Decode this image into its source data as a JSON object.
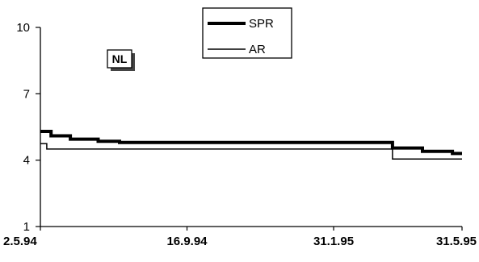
{
  "chart_data": {
    "type": "line",
    "title": "",
    "xlabel": "",
    "ylabel": "",
    "badge": "NL",
    "y_ticks": [
      "1",
      "4",
      "7",
      "10"
    ],
    "ylim": [
      1,
      10
    ],
    "x_tick_labels": [
      "2.5.94",
      "16.9.94",
      "31.1.95",
      "31.5.95"
    ],
    "x_tick_dates": [
      "1994-05-02",
      "1994-09-16",
      "1995-01-31",
      "1995-05-31"
    ],
    "xlim": [
      "1994-05-02",
      "1995-05-31"
    ],
    "grid": false,
    "legend_position": "top-center",
    "series": [
      {
        "name": "SPR",
        "color": "#000000",
        "style": "thick",
        "points": [
          [
            "1994-05-02",
            5.3
          ],
          [
            "1994-05-12",
            5.3
          ],
          [
            "1994-05-12",
            5.1
          ],
          [
            "1994-05-30",
            5.1
          ],
          [
            "1994-05-30",
            4.95
          ],
          [
            "1994-06-25",
            4.95
          ],
          [
            "1994-06-25",
            4.85
          ],
          [
            "1994-07-15",
            4.85
          ],
          [
            "1994-07-15",
            4.8
          ],
          [
            "1995-03-27",
            4.8
          ],
          [
            "1995-03-27",
            4.55
          ],
          [
            "1995-04-24",
            4.55
          ],
          [
            "1995-04-24",
            4.4
          ],
          [
            "1995-05-22",
            4.4
          ],
          [
            "1995-05-22",
            4.3
          ],
          [
            "1995-05-31",
            4.3
          ]
        ]
      },
      {
        "name": "AR",
        "color": "#000000",
        "style": "thin",
        "points": [
          [
            "1994-05-02",
            4.75
          ],
          [
            "1994-05-08",
            4.75
          ],
          [
            "1994-05-08",
            4.5
          ],
          [
            "1995-03-27",
            4.5
          ],
          [
            "1995-03-27",
            4.05
          ],
          [
            "1995-05-31",
            4.05
          ]
        ]
      }
    ]
  }
}
